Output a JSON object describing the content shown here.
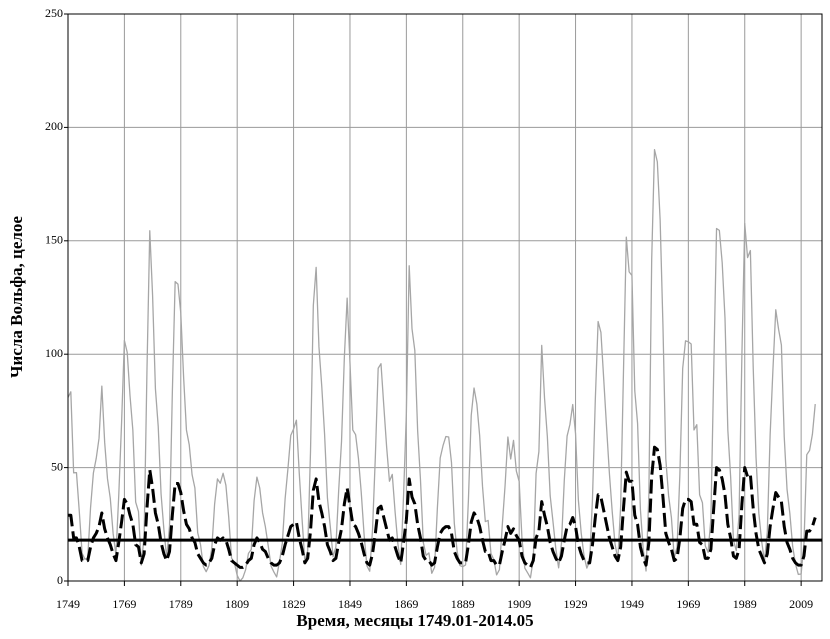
{
  "chart_data": {
    "type": "line",
    "y_label": "Числа Вольфа, целое",
    "x_label": "Время, месяцы 1749.01-2014.05",
    "xlim": [
      1749,
      2016.4
    ],
    "xticks": [
      1749,
      1769,
      1789,
      1809,
      1829,
      1849,
      1869,
      1889,
      1909,
      1929,
      1949,
      1969,
      1989,
      2009
    ],
    "ylim": [
      0,
      250
    ],
    "yticks": [
      0,
      50,
      100,
      150,
      200,
      250
    ],
    "grid": true,
    "hline": 18,
    "hline_color": "#000000",
    "x": [
      1749,
      1750,
      1751,
      1752,
      1753,
      1754,
      1755,
      1756,
      1757,
      1758,
      1759,
      1760,
      1761,
      1762,
      1763,
      1764,
      1765,
      1766,
      1767,
      1768,
      1769,
      1770,
      1771,
      1772,
      1773,
      1774,
      1775,
      1776,
      1777,
      1778,
      1779,
      1780,
      1781,
      1782,
      1783,
      1784,
      1785,
      1786,
      1787,
      1788,
      1789,
      1790,
      1791,
      1792,
      1793,
      1794,
      1795,
      1796,
      1797,
      1798,
      1799,
      1800,
      1801,
      1802,
      1803,
      1804,
      1805,
      1806,
      1807,
      1808,
      1809,
      1810,
      1811,
      1812,
      1813,
      1814,
      1815,
      1816,
      1817,
      1818,
      1819,
      1820,
      1821,
      1822,
      1823,
      1824,
      1825,
      1826,
      1827,
      1828,
      1829,
      1830,
      1831,
      1832,
      1833,
      1834,
      1835,
      1836,
      1837,
      1838,
      1839,
      1840,
      1841,
      1842,
      1843,
      1844,
      1845,
      1846,
      1847,
      1848,
      1849,
      1850,
      1851,
      1852,
      1853,
      1854,
      1855,
      1856,
      1857,
      1858,
      1859,
      1860,
      1861,
      1862,
      1863,
      1864,
      1865,
      1866,
      1867,
      1868,
      1869,
      1870,
      1871,
      1872,
      1873,
      1874,
      1875,
      1876,
      1877,
      1878,
      1879,
      1880,
      1881,
      1882,
      1883,
      1884,
      1885,
      1886,
      1887,
      1888,
      1889,
      1890,
      1891,
      1892,
      1893,
      1894,
      1895,
      1896,
      1897,
      1898,
      1899,
      1900,
      1901,
      1902,
      1903,
      1904,
      1905,
      1906,
      1907,
      1908,
      1909,
      1910,
      1911,
      1912,
      1913,
      1914,
      1915,
      1916,
      1917,
      1918,
      1919,
      1920,
      1921,
      1922,
      1923,
      1924,
      1925,
      1926,
      1927,
      1928,
      1929,
      1930,
      1931,
      1932,
      1933,
      1934,
      1935,
      1936,
      1937,
      1938,
      1939,
      1940,
      1941,
      1942,
      1943,
      1944,
      1945,
      1946,
      1947,
      1948,
      1949,
      1950,
      1951,
      1952,
      1953,
      1954,
      1955,
      1956,
      1957,
      1958,
      1959,
      1960,
      1961,
      1962,
      1963,
      1964,
      1965,
      1966,
      1967,
      1968,
      1969,
      1970,
      1971,
      1972,
      1973,
      1974,
      1975,
      1976,
      1977,
      1978,
      1979,
      1980,
      1981,
      1982,
      1983,
      1984,
      1985,
      1986,
      1987,
      1988,
      1989,
      1990,
      1991,
      1992,
      1993,
      1994,
      1995,
      1996,
      1997,
      1998,
      1999,
      2000,
      2001,
      2002,
      2003,
      2004,
      2005,
      2006,
      2007,
      2008,
      2009,
      2010,
      2011,
      2012,
      2013,
      2014
    ],
    "series": [
      {
        "color": "#a6a6a6",
        "dash": false,
        "values": [
          80.9,
          83.4,
          47.7,
          47.8,
          30.7,
          12.2,
          9.6,
          10.2,
          32.4,
          47.6,
          54.0,
          62.9,
          85.9,
          61.2,
          45.1,
          36.4,
          20.9,
          11.4,
          37.8,
          69.8,
          106.1,
          100.8,
          81.6,
          66.5,
          34.8,
          30.6,
          7.0,
          19.8,
          92.5,
          154.4,
          125.9,
          84.8,
          68.1,
          38.5,
          22.8,
          10.2,
          24.1,
          82.9,
          132.0,
          130.9,
          118.1,
          89.9,
          66.6,
          60.0,
          46.9,
          41.0,
          21.3,
          16.0,
          6.4,
          4.1,
          6.8,
          14.5,
          34.0,
          45.0,
          43.1,
          47.5,
          42.2,
          28.1,
          10.1,
          8.1,
          2.5,
          0.0,
          1.4,
          5.0,
          12.2,
          13.9,
          35.4,
          45.8,
          41.0,
          30.1,
          23.9,
          15.6,
          6.6,
          4.0,
          1.8,
          8.5,
          16.6,
          36.3,
          49.6,
          64.2,
          67.0,
          70.9,
          47.8,
          27.5,
          8.5,
          13.2,
          56.9,
          121.5,
          138.3,
          103.2,
          85.7,
          64.6,
          36.7,
          24.2,
          10.7,
          15.0,
          40.1,
          61.5,
          98.5,
          124.7,
          96.3,
          66.6,
          64.5,
          54.1,
          39.0,
          20.6,
          6.7,
          4.3,
          22.7,
          54.8,
          93.8,
          95.8,
          77.2,
          59.1,
          44.0,
          47.0,
          30.5,
          16.3,
          7.3,
          37.6,
          74.0,
          139.0,
          111.2,
          101.6,
          66.2,
          44.7,
          17.0,
          11.3,
          12.4,
          3.4,
          6.0,
          32.3,
          54.3,
          59.7,
          63.7,
          63.5,
          52.2,
          25.4,
          13.1,
          6.8,
          6.3,
          7.1,
          35.6,
          73.0,
          85.1,
          78.0,
          64.0,
          41.8,
          26.2,
          26.7,
          12.1,
          9.5,
          2.7,
          5.0,
          24.4,
          42.0,
          63.5,
          53.8,
          62.0,
          48.5,
          43.9,
          18.6,
          5.7,
          3.6,
          1.4,
          9.6,
          47.4,
          57.1,
          103.9,
          80.6,
          63.6,
          37.6,
          26.1,
          14.2,
          5.8,
          16.7,
          44.3,
          63.9,
          69.0,
          77.8,
          64.9,
          35.7,
          21.2,
          11.1,
          5.7,
          8.7,
          36.1,
          79.7,
          114.4,
          109.6,
          88.8,
          67.8,
          47.5,
          30.6,
          16.3,
          9.6,
          33.2,
          92.6,
          151.6,
          136.3,
          134.7,
          83.9,
          69.4,
          31.5,
          13.9,
          4.4,
          38.0,
          141.7,
          190.2,
          184.8,
          159.0,
          112.3,
          53.9,
          37.6,
          27.9,
          10.2,
          15.1,
          47.0,
          93.8,
          105.9,
          105.5,
          104.5,
          66.6,
          68.9,
          38.0,
          34.5,
          15.5,
          12.6,
          27.5,
          92.5,
          155.4,
          154.6,
          140.4,
          115.9,
          66.6,
          45.9,
          17.9,
          13.4,
          29.4,
          100.2,
          157.6,
          142.6,
          145.7,
          94.3,
          54.6,
          29.9,
          17.5,
          8.6,
          21.5,
          64.3,
          93.3,
          119.6,
          111.0,
          104.0,
          63.7,
          40.4,
          29.8,
          15.2,
          7.5,
          2.9,
          3.1,
          16.5,
          55.7,
          57.6,
          64.7,
          78
        ]
      },
      {
        "color": "#000000",
        "dash": true,
        "values": [
          29,
          29,
          19,
          19,
          15,
          9,
          9,
          9,
          15,
          19,
          21,
          24,
          30,
          23,
          19,
          16,
          12,
          9,
          17,
          26,
          36,
          34,
          29,
          25,
          16,
          15,
          8,
          12,
          32,
          49,
          41,
          30,
          25,
          17,
          12,
          9,
          13,
          29,
          43,
          43,
          39,
          31,
          25,
          23,
          19,
          17,
          12,
          10,
          8,
          7,
          8,
          10,
          16,
          19,
          18,
          19,
          18,
          14,
          9,
          8,
          7,
          6,
          6,
          7,
          9,
          10,
          16,
          19,
          17,
          14,
          13,
          10,
          8,
          7,
          7,
          8,
          11,
          16,
          20,
          24,
          25,
          26,
          19,
          14,
          8,
          10,
          22,
          40,
          45,
          35,
          30,
          24,
          16,
          13,
          9,
          10,
          17,
          23,
          34,
          41,
          33,
          25,
          24,
          21,
          17,
          12,
          8,
          7,
          12,
          21,
          32,
          33,
          28,
          23,
          18,
          19,
          15,
          11,
          8,
          17,
          27,
          45,
          37,
          34,
          25,
          19,
          11,
          9,
          9,
          7,
          8,
          15,
          21,
          23,
          24,
          24,
          21,
          13,
          10,
          8,
          8,
          8,
          16,
          26,
          30,
          28,
          24,
          18,
          13,
          13,
          9,
          9,
          7,
          7,
          13,
          18,
          24,
          21,
          23,
          20,
          18,
          11,
          8,
          7,
          6,
          9,
          19,
          22,
          35,
          29,
          24,
          17,
          13,
          10,
          8,
          11,
          18,
          24,
          25,
          28,
          24,
          16,
          12,
          9,
          8,
          8,
          16,
          28,
          38,
          37,
          31,
          25,
          19,
          15,
          11,
          9,
          15,
          32,
          48,
          44,
          44,
          29,
          25,
          15,
          10,
          7,
          17,
          46,
          59,
          58,
          51,
          37,
          21,
          17,
          14,
          9,
          10,
          19,
          32,
          36,
          36,
          35,
          25,
          25,
          17,
          16,
          10,
          10,
          14,
          32,
          50,
          49,
          45,
          38,
          25,
          19,
          11,
          10,
          14,
          34,
          50,
          46,
          47,
          32,
          21,
          14,
          11,
          8,
          12,
          24,
          32,
          39,
          37,
          35,
          24,
          17,
          14,
          10,
          8,
          7,
          7,
          11,
          22,
          22,
          24,
          28
        ]
      }
    ]
  }
}
